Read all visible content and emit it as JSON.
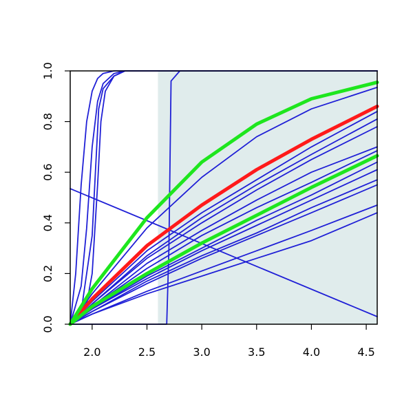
{
  "chart_data": {
    "type": "line",
    "title": "",
    "xlabel": "",
    "ylabel": "",
    "xlim": [
      1.8,
      4.6
    ],
    "ylim": [
      0,
      1
    ],
    "grid": false,
    "legend": "none",
    "x_ticks": [
      "2.0",
      "2.5",
      "3.0",
      "3.5",
      "4.0",
      "4.5"
    ],
    "y_ticks": [
      "0.0",
      "0.2",
      "0.4",
      "0.6",
      "0.8",
      "1.0"
    ],
    "shaded_region": {
      "x": [
        2.6,
        4.6
      ],
      "color": "#e0ecec"
    },
    "colors": {
      "blue": "#1f1fd6",
      "red": "#ff1a1a",
      "green": "#1ee61e"
    },
    "highlight_series": [
      {
        "color": "red",
        "x": [
          1.8,
          2.0,
          2.5,
          3.0,
          3.5,
          4.0,
          4.6
        ],
        "y": [
          0.0,
          0.1,
          0.31,
          0.47,
          0.61,
          0.73,
          0.86
        ]
      },
      {
        "color": "green",
        "x": [
          1.8,
          2.0,
          2.5,
          3.0,
          3.5,
          4.0,
          4.6
        ],
        "y": [
          0.0,
          0.14,
          0.42,
          0.64,
          0.79,
          0.89,
          0.955
        ]
      },
      {
        "color": "green",
        "x": [
          1.8,
          2.0,
          2.5,
          3.0,
          3.5,
          4.0,
          4.6
        ],
        "y": [
          0.0,
          0.07,
          0.2,
          0.32,
          0.43,
          0.54,
          0.665
        ]
      }
    ],
    "blue_series": [
      {
        "x": [
          1.8,
          1.85,
          1.9,
          1.95,
          2.0,
          2.05,
          2.1,
          2.2,
          2.3,
          4.6
        ],
        "y": [
          0.0,
          0.2,
          0.55,
          0.8,
          0.92,
          0.97,
          0.99,
          1.0,
          1.0,
          1.0
        ]
      },
      {
        "x": [
          1.8,
          1.9,
          1.95,
          2.0,
          2.05,
          2.1,
          2.2,
          2.3,
          4.6
        ],
        "y": [
          0.0,
          0.15,
          0.38,
          0.7,
          0.88,
          0.95,
          0.99,
          1.0,
          1.0
        ]
      },
      {
        "x": [
          1.8,
          1.9,
          2.0,
          2.03,
          2.06,
          2.1,
          2.2,
          2.3,
          4.6
        ],
        "y": [
          0.0,
          0.05,
          0.35,
          0.6,
          0.85,
          0.93,
          0.98,
          1.0,
          1.0
        ]
      },
      {
        "x": [
          1.8,
          1.95,
          2.0,
          2.05,
          2.08,
          2.12,
          2.2,
          2.3,
          4.6
        ],
        "y": [
          0.0,
          0.08,
          0.2,
          0.55,
          0.8,
          0.92,
          0.98,
          1.0,
          1.0
        ]
      },
      {
        "x": [
          1.8,
          2.0,
          2.3,
          2.6,
          2.68,
          2.7,
          2.72,
          2.8,
          4.6
        ],
        "y": [
          0.0,
          0.0,
          0.0,
          0.0,
          0.0,
          0.3,
          0.96,
          1.0,
          1.0
        ]
      },
      {
        "x": [
          1.8,
          2.0,
          2.5,
          3.0,
          3.5,
          4.0,
          4.6
        ],
        "y": [
          0.0,
          0.12,
          0.38,
          0.58,
          0.74,
          0.85,
          0.935
        ]
      },
      {
        "x": [
          1.8,
          2.0,
          2.5,
          3.0,
          3.5,
          4.0,
          4.6
        ],
        "y": [
          0.0,
          0.09,
          0.29,
          0.44,
          0.57,
          0.7,
          0.84
        ]
      },
      {
        "x": [
          1.8,
          2.0,
          2.5,
          3.0,
          3.5,
          4.0,
          4.6
        ],
        "y": [
          0.0,
          0.08,
          0.27,
          0.42,
          0.55,
          0.67,
          0.81
        ]
      },
      {
        "x": [
          1.8,
          2.0,
          2.5,
          3.0,
          3.5,
          4.0,
          4.6
        ],
        "y": [
          0.0,
          0.08,
          0.26,
          0.4,
          0.53,
          0.65,
          0.78
        ]
      },
      {
        "x": [
          1.8,
          2.0,
          2.5,
          3.0,
          3.5,
          4.0,
          4.6
        ],
        "y": [
          0.0,
          0.07,
          0.24,
          0.37,
          0.49,
          0.6,
          0.7
        ]
      },
      {
        "x": [
          1.8,
          2.0,
          2.5,
          3.0,
          3.5,
          4.0,
          4.6
        ],
        "y": [
          0.0,
          0.07,
          0.22,
          0.35,
          0.46,
          0.56,
          0.685
        ]
      },
      {
        "x": [
          1.8,
          2.0,
          2.5,
          3.0,
          3.5,
          4.0,
          4.6
        ],
        "y": [
          0.0,
          0.06,
          0.19,
          0.3,
          0.41,
          0.51,
          0.64
        ]
      },
      {
        "x": [
          1.8,
          2.0,
          2.5,
          3.0,
          3.5,
          4.0,
          4.6
        ],
        "y": [
          0.0,
          0.06,
          0.18,
          0.29,
          0.39,
          0.49,
          0.61
        ]
      },
      {
        "x": [
          1.8,
          2.0,
          2.5,
          3.0,
          3.5,
          4.0,
          4.6
        ],
        "y": [
          0.0,
          0.05,
          0.17,
          0.27,
          0.36,
          0.46,
          0.57
        ]
      },
      {
        "x": [
          1.8,
          2.0,
          2.5,
          3.0,
          3.5,
          4.0,
          4.6
        ],
        "y": [
          0.0,
          0.05,
          0.16,
          0.26,
          0.35,
          0.44,
          0.55
        ]
      },
      {
        "x": [
          1.8,
          2.0,
          2.5,
          3.0,
          3.5,
          4.0,
          4.6
        ],
        "y": [
          0.0,
          0.04,
          0.13,
          0.21,
          0.29,
          0.37,
          0.47
        ]
      },
      {
        "x": [
          1.8,
          2.0,
          2.5,
          3.0,
          3.5,
          4.0,
          4.6
        ],
        "y": [
          0.0,
          0.04,
          0.12,
          0.19,
          0.26,
          0.33,
          0.44
        ]
      },
      {
        "x": [
          1.8,
          4.6
        ],
        "y": [
          0.535,
          0.03
        ]
      }
    ]
  }
}
